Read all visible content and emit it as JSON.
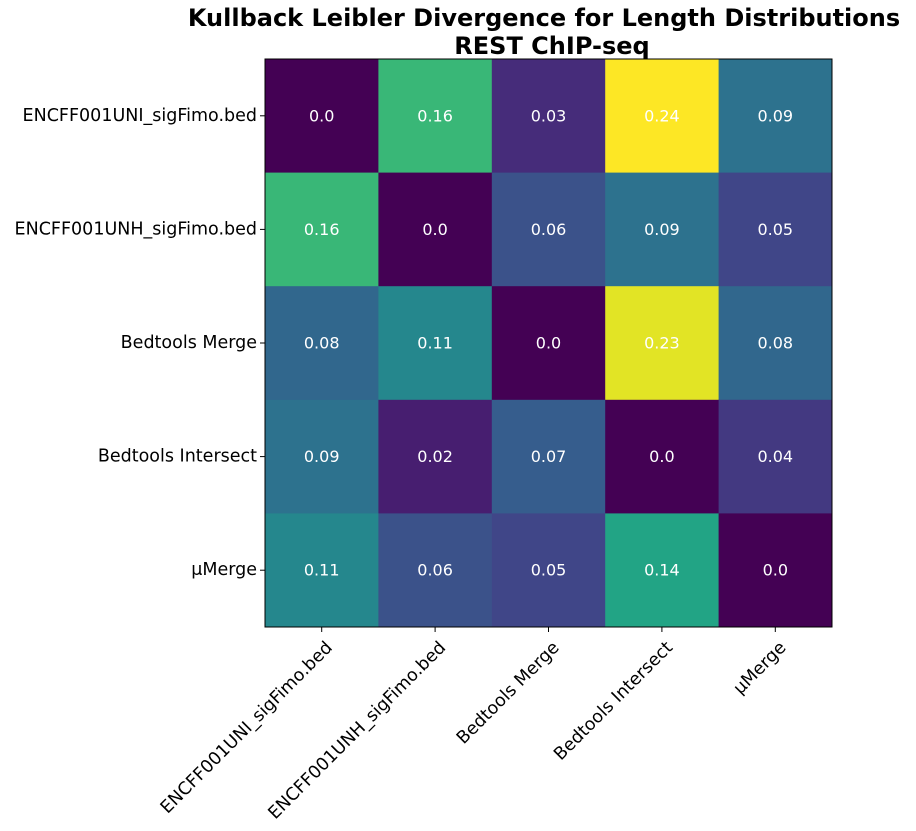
{
  "chart_data": {
    "type": "heatmap",
    "title": "Kullback Leibler Divergence for Length Distributions",
    "subtitle": "REST ChIP-seq",
    "xlabel": "",
    "ylabel": "",
    "row_labels": [
      "ENCFF001UNI_sigFimo.bed",
      "ENCFF001UNH_sigFimo.bed",
      "Bedtools Merge",
      "Bedtools Intersect",
      "μMerge"
    ],
    "col_labels": [
      "ENCFF001UNI_sigFimo.bed",
      "ENCFF001UNH_sigFimo.bed",
      "Bedtools Merge",
      "Bedtools Intersect",
      "μMerge"
    ],
    "values": [
      [
        0.0,
        0.16,
        0.03,
        0.24,
        0.09
      ],
      [
        0.16,
        0.0,
        0.06,
        0.09,
        0.05
      ],
      [
        0.08,
        0.11,
        0.0,
        0.23,
        0.08
      ],
      [
        0.09,
        0.02,
        0.07,
        0.0,
        0.04
      ],
      [
        0.11,
        0.06,
        0.05,
        0.14,
        0.0
      ]
    ],
    "value_labels": [
      [
        "0.0",
        "0.16",
        "0.03",
        "0.24",
        "0.09"
      ],
      [
        "0.16",
        "0.0",
        "0.06",
        "0.09",
        "0.05"
      ],
      [
        "0.08",
        "0.11",
        "0.0",
        "0.23",
        "0.08"
      ],
      [
        "0.09",
        "0.02",
        "0.07",
        "0.0",
        "0.04"
      ],
      [
        "0.11",
        "0.06",
        "0.05",
        "0.14",
        "0.0"
      ]
    ],
    "colormap": "viridis",
    "value_range": [
      0.0,
      0.24
    ],
    "grid": false,
    "legend": "none"
  }
}
